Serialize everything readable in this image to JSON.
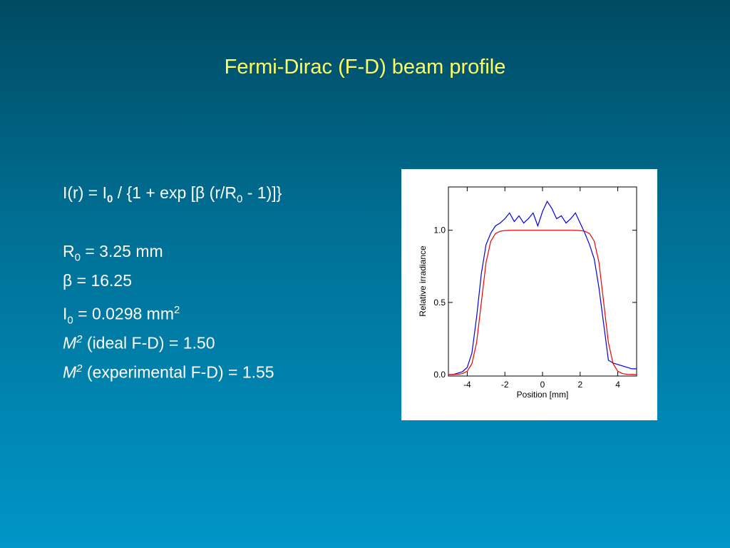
{
  "title": "Fermi-Dirac (F-D) beam profile",
  "lines": [
    [
      {
        "t": "I(r) = I"
      },
      {
        "t": "0",
        "sub": true,
        "bold": true
      },
      {
        "t": " / {1 + exp [β (r/R"
      },
      {
        "t": "0",
        "sub": true
      },
      {
        "t": " - 1)]}"
      }
    ],
    [
      {
        "t": "R"
      },
      {
        "t": "0",
        "sub": true
      },
      {
        "t": " = 3.25 mm"
      }
    ],
    [
      {
        "t": "β = 16.25"
      }
    ],
    [
      {
        "t": "I"
      },
      {
        "t": "0",
        "sub": true
      },
      {
        "t": " = 0.0298 mm"
      },
      {
        "t": "2",
        "sup": true
      }
    ],
    [
      {
        "t": "M",
        "italic": true
      },
      {
        "t": "2",
        "sup": true,
        "italic": true
      },
      {
        "t": " (ideal F-D) = 1.50"
      }
    ],
    [
      {
        "t": "M",
        "italic": true
      },
      {
        "t": "2",
        "sup": true,
        "italic": true
      },
      {
        "t": " (experimental F-D) = 1.55"
      }
    ]
  ],
  "chart_data": {
    "type": "line",
    "xlabel": "Position [mm]",
    "ylabel": "Relative irradiance",
    "xlim": [
      -5,
      5
    ],
    "xticks": [
      -4,
      -2,
      0,
      2,
      4
    ],
    "ylim": [
      -0.01,
      1.3
    ],
    "yticks": [
      {
        "value": 0,
        "label": "0.0"
      },
      {
        "value": 0.5,
        "label": "0.5"
      },
      {
        "value": 1,
        "label": "1.0"
      }
    ],
    "x": [
      -5,
      -4.75,
      -4.5,
      -4.25,
      -4,
      -3.75,
      -3.5,
      -3.25,
      -3,
      -2.75,
      -2.5,
      -2.25,
      -2,
      -1.75,
      -1.5,
      -1.25,
      -1,
      -0.75,
      -0.5,
      -0.25,
      0,
      0.25,
      0.5,
      0.75,
      1,
      1.25,
      1.5,
      1.75,
      2,
      2.25,
      2.5,
      2.75,
      3,
      3.25,
      3.5,
      3.75,
      4,
      4.25,
      4.5,
      4.75,
      5
    ],
    "series": [
      {
        "color": "#0000ee",
        "values": [
          0.0,
          0.0,
          0.01,
          0.02,
          0.05,
          0.15,
          0.4,
          0.7,
          0.9,
          0.98,
          1.03,
          1.05,
          1.08,
          1.12,
          1.06,
          1.1,
          1.05,
          1.08,
          1.12,
          1.03,
          1.13,
          1.2,
          1.15,
          1.08,
          1.1,
          1.05,
          1.08,
          1.12,
          1.05,
          0.98,
          0.9,
          0.8,
          0.6,
          0.35,
          0.1,
          0.08,
          0.07,
          0.06,
          0.05,
          0.04,
          0.04
        ]
      },
      {
        "color": "#ee0000",
        "values": [
          0.0,
          0.001,
          0.002,
          0.007,
          0.023,
          0.076,
          0.223,
          0.5,
          0.777,
          0.924,
          0.977,
          0.993,
          0.998,
          0.999,
          1,
          1,
          1,
          1,
          1,
          1,
          1,
          1,
          1,
          1,
          1,
          1,
          1,
          0.999,
          0.998,
          0.993,
          0.977,
          0.924,
          0.777,
          0.5,
          0.223,
          0.076,
          0.023,
          0.007,
          0.002,
          0.001,
          0.0
        ]
      }
    ]
  }
}
